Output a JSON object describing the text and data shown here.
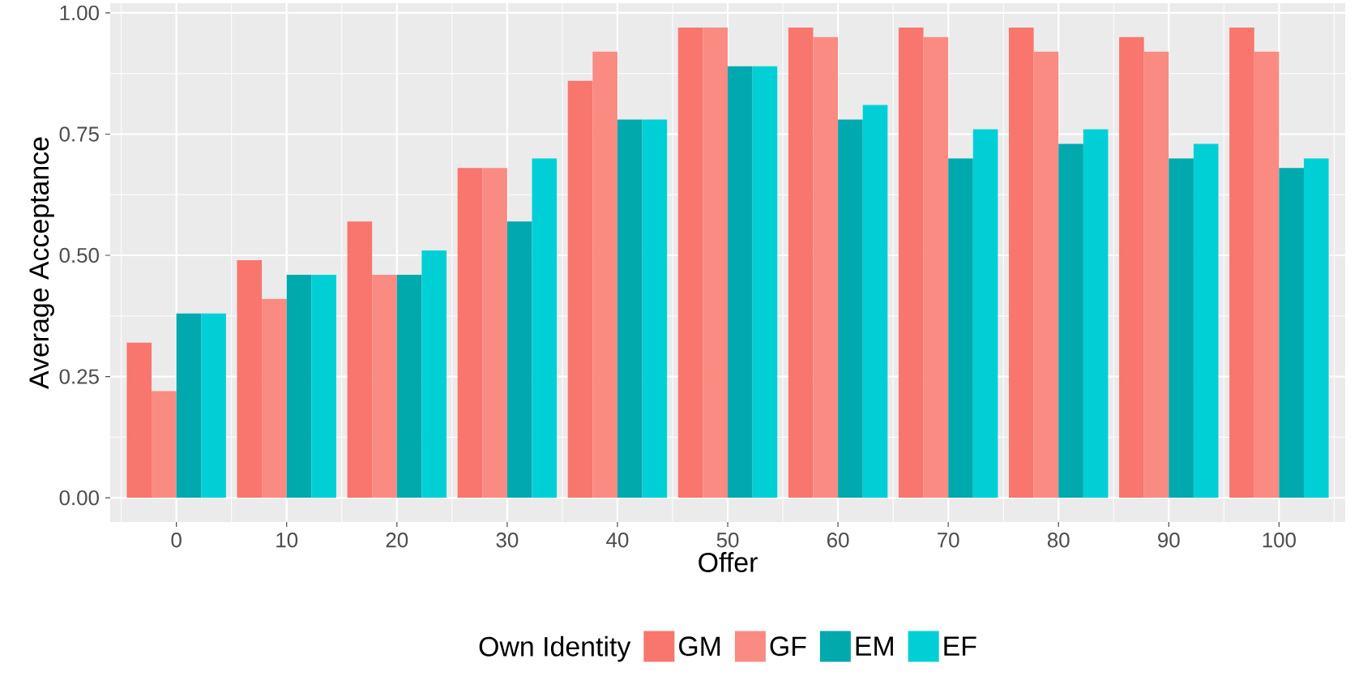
{
  "chart_data": {
    "type": "bar",
    "xlabel": "Offer",
    "ylabel": "Average Acceptance",
    "legend_title": "Own Identity",
    "legend": "bottom",
    "grid": true,
    "categories": [
      "0",
      "10",
      "20",
      "30",
      "40",
      "50",
      "60",
      "70",
      "80",
      "90",
      "100"
    ],
    "series": [
      {
        "name": "GM",
        "color": "#f8766d",
        "values": [
          0.32,
          0.49,
          0.57,
          0.68,
          0.86,
          0.97,
          0.97,
          0.97,
          0.97,
          0.95,
          0.97
        ]
      },
      {
        "name": "GF",
        "color": "#f98b82",
        "values": [
          0.22,
          0.41,
          0.46,
          0.68,
          0.92,
          0.97,
          0.95,
          0.95,
          0.92,
          0.92,
          0.92
        ]
      },
      {
        "name": "EM",
        "color": "#00a9ad",
        "values": [
          0.38,
          0.46,
          0.46,
          0.57,
          0.78,
          0.89,
          0.78,
          0.7,
          0.73,
          0.7,
          0.68
        ]
      },
      {
        "name": "EF",
        "color": "#00d0d6",
        "values": [
          0.38,
          0.46,
          0.51,
          0.7,
          0.78,
          0.89,
          0.81,
          0.76,
          0.76,
          0.73,
          0.7
        ]
      }
    ],
    "ylim": [
      -0.05,
      1.02
    ],
    "yticks": [
      {
        "value": 0,
        "label": "0.00"
      },
      {
        "value": 0.25,
        "label": "0.25"
      },
      {
        "value": 0.5,
        "label": "0.50"
      },
      {
        "value": 0.75,
        "label": "0.75"
      },
      {
        "value": 1,
        "label": "1.00"
      }
    ]
  }
}
